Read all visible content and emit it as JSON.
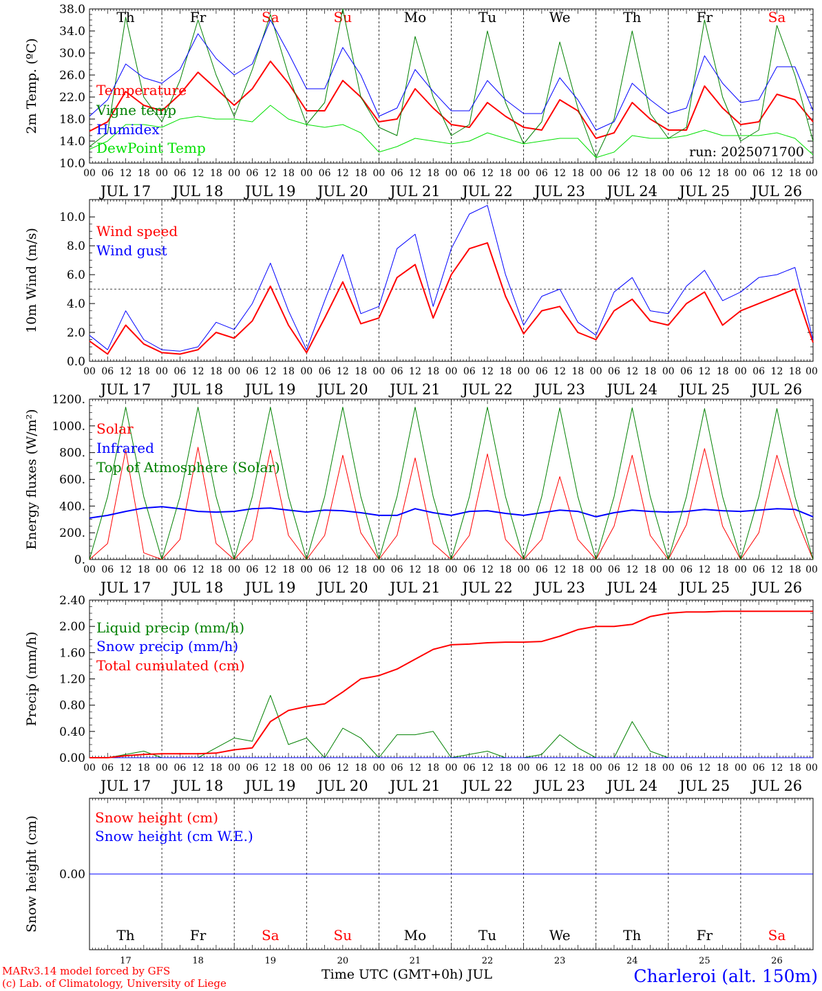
{
  "footer": {
    "model_line": "MARv3.14 model forced by GFS",
    "credit_line": "(c) Lab. of Climatology, University of Liege",
    "xlabel": "Time UTC (GMT+0h) JUL",
    "station": "Charleroi (alt. 150m)"
  },
  "colors": {
    "red": "#ff0000",
    "blue": "#0000ff",
    "darkgreen": "#008000",
    "green": "#00e000",
    "axis": "#000000"
  },
  "hour_labels": [
    "00",
    "06",
    "12",
    "18"
  ],
  "final_hour_label": "00",
  "days": [
    {
      "date": "JUL 17",
      "day": "17",
      "dow": "Th",
      "weekend": false
    },
    {
      "date": "JUL 18",
      "day": "18",
      "dow": "Fr",
      "weekend": false
    },
    {
      "date": "JUL 19",
      "day": "19",
      "dow": "Sa",
      "weekend": true
    },
    {
      "date": "JUL 20",
      "day": "20",
      "dow": "Su",
      "weekend": true
    },
    {
      "date": "JUL 21",
      "day": "21",
      "dow": "Mo",
      "weekend": false
    },
    {
      "date": "JUL 22",
      "day": "22",
      "dow": "Tu",
      "weekend": false
    },
    {
      "date": "JUL 23",
      "day": "23",
      "dow": "We",
      "weekend": false
    },
    {
      "date": "JUL 24",
      "day": "24",
      "dow": "Th",
      "weekend": false
    },
    {
      "date": "JUL 25",
      "day": "25",
      "dow": "Fr",
      "weekend": false
    },
    {
      "date": "JUL 26",
      "day": "26",
      "dow": "Sa",
      "weekend": true
    }
  ],
  "chart_data": [
    {
      "id": "temp",
      "type": "line",
      "ylabel": "2m Temp. (ºC)",
      "ylim": [
        10,
        38
      ],
      "yticks": [
        10,
        14,
        18,
        22,
        26,
        30,
        34,
        38
      ],
      "ytick_labels": [
        "10.0",
        "14.0",
        "18.0",
        "22.0",
        "26.0",
        "30.0",
        "34.0",
        "38.0"
      ],
      "annotation": "run: 2025071700",
      "x_hours": [
        0,
        6,
        12,
        18,
        24,
        30,
        36,
        42,
        48,
        54,
        60,
        66,
        72,
        78,
        84,
        90,
        96,
        102,
        108,
        114,
        120,
        126,
        132,
        138,
        144,
        150,
        156,
        162,
        168,
        174,
        180,
        186,
        192,
        198,
        204,
        210,
        216,
        222,
        228,
        234,
        240
      ],
      "series": [
        {
          "name": "Temperature",
          "color": "#ff0000",
          "width": 2,
          "values": [
            15.8,
            17.5,
            23.0,
            20.5,
            19.5,
            22.5,
            26.5,
            23.5,
            20.5,
            23.5,
            28.5,
            24.5,
            19.5,
            19.5,
            25.0,
            22.0,
            17.5,
            18.0,
            23.5,
            20.0,
            17.0,
            16.5,
            21.0,
            18.5,
            16.5,
            16.0,
            21.5,
            19.5,
            14.5,
            15.5,
            21.0,
            18.0,
            16.0,
            16.0,
            24.0,
            20.0,
            17.0,
            17.5,
            22.5,
            21.5,
            17.5
          ]
        },
        {
          "name": "Vigne temp",
          "color": "#008000",
          "width": 1,
          "values": [
            13.0,
            15.5,
            36.5,
            22.0,
            17.5,
            25.0,
            36.0,
            26.0,
            18.5,
            27.0,
            37.0,
            26.0,
            17.0,
            21.0,
            38.0,
            22.0,
            16.5,
            15.0,
            33.0,
            22.0,
            15.0,
            17.0,
            34.0,
            21.0,
            13.5,
            17.5,
            32.0,
            20.0,
            11.0,
            18.0,
            34.0,
            19.0,
            14.5,
            16.5,
            36.0,
            22.0,
            14.0,
            16.0,
            35.0,
            26.0,
            14.0
          ]
        },
        {
          "name": "Humidex",
          "color": "#0000ff",
          "width": 1,
          "values": [
            18.5,
            21.5,
            28.0,
            25.5,
            24.5,
            27.0,
            33.5,
            29.0,
            26.0,
            28.0,
            36.0,
            30.0,
            23.5,
            23.5,
            31.0,
            26.0,
            18.5,
            20.0,
            27.0,
            23.0,
            19.5,
            19.5,
            25.0,
            21.5,
            19.0,
            19.0,
            25.5,
            21.5,
            16.0,
            17.5,
            24.5,
            21.5,
            19.0,
            20.0,
            29.5,
            24.5,
            21.0,
            21.5,
            27.5,
            27.5,
            19.5
          ]
        },
        {
          "name": "DewPoint Temp",
          "color": "#00e000",
          "width": 1,
          "values": [
            12.5,
            14.0,
            17.0,
            17.0,
            16.5,
            18.0,
            18.5,
            18.0,
            18.0,
            17.5,
            20.5,
            18.0,
            17.0,
            16.5,
            17.0,
            15.5,
            12.0,
            13.0,
            14.5,
            14.0,
            13.5,
            14.0,
            15.5,
            14.5,
            13.5,
            14.0,
            14.5,
            14.5,
            11.0,
            12.0,
            15.0,
            14.5,
            14.5,
            15.0,
            16.0,
            15.0,
            15.0,
            15.0,
            15.5,
            14.5,
            11.5
          ]
        }
      ]
    },
    {
      "id": "wind",
      "type": "line",
      "ylabel": "10m Wind (m/s)",
      "ylim": [
        0,
        11.2
      ],
      "yticks": [
        0,
        2,
        4,
        6,
        8,
        10
      ],
      "ytick_labels": [
        "0.0",
        "2.0",
        "4.0",
        "6.0",
        "8.0",
        "10.0"
      ],
      "reference_line": 5,
      "x_hours": [
        0,
        6,
        12,
        18,
        24,
        30,
        36,
        42,
        48,
        54,
        60,
        66,
        72,
        78,
        84,
        90,
        96,
        102,
        108,
        114,
        120,
        126,
        132,
        138,
        144,
        150,
        156,
        162,
        168,
        174,
        180,
        186,
        192,
        198,
        204,
        210,
        216,
        222,
        228,
        234,
        240
      ],
      "series": [
        {
          "name": "Wind speed",
          "color": "#ff0000",
          "width": 2,
          "values": [
            1.4,
            0.5,
            2.5,
            1.2,
            0.6,
            0.5,
            0.8,
            2.0,
            1.6,
            2.8,
            5.2,
            2.5,
            0.6,
            3.0,
            5.5,
            2.6,
            3.0,
            5.8,
            6.7,
            3.0,
            6.0,
            7.8,
            8.2,
            4.5,
            1.9,
            3.5,
            3.8,
            2.0,
            1.5,
            3.5,
            4.3,
            2.8,
            2.5,
            4.0,
            4.8,
            2.5,
            3.5,
            4.0,
            4.5,
            5.0,
            1.3
          ]
        },
        {
          "name": "Wind gust",
          "color": "#0000ff",
          "width": 1,
          "values": [
            1.8,
            0.8,
            3.5,
            1.5,
            0.8,
            0.7,
            1.0,
            2.7,
            2.2,
            4.0,
            6.8,
            3.5,
            0.8,
            4.2,
            7.4,
            3.3,
            3.8,
            7.8,
            8.8,
            3.8,
            7.8,
            10.2,
            10.8,
            6.0,
            2.5,
            4.5,
            5.0,
            2.7,
            1.8,
            4.8,
            5.8,
            3.5,
            3.3,
            5.2,
            6.3,
            4.2,
            4.8,
            5.8,
            6.0,
            6.5,
            1.5
          ]
        }
      ]
    },
    {
      "id": "energy",
      "type": "line",
      "ylabel": "Energy fluxes (W/m²)",
      "ylim": [
        0,
        1200
      ],
      "yticks": [
        0,
        200,
        400,
        600,
        800,
        1000,
        1200
      ],
      "ytick_labels": [
        "0.",
        "200.",
        "400.",
        "600.",
        "800.",
        "1000.",
        "1200."
      ],
      "x_hours": [
        0,
        6,
        12,
        18,
        24,
        30,
        36,
        42,
        48,
        54,
        60,
        66,
        72,
        78,
        84,
        90,
        96,
        102,
        108,
        114,
        120,
        126,
        132,
        138,
        144,
        150,
        156,
        162,
        168,
        174,
        180,
        186,
        192,
        198,
        204,
        210,
        216,
        222,
        228,
        234,
        240
      ],
      "series": [
        {
          "name": "Solar",
          "color": "#ff0000",
          "width": 1,
          "values": [
            0,
            120,
            820,
            50,
            0,
            150,
            840,
            120,
            0,
            150,
            820,
            180,
            0,
            180,
            780,
            200,
            0,
            180,
            760,
            120,
            0,
            180,
            790,
            150,
            0,
            150,
            620,
            150,
            0,
            250,
            780,
            180,
            0,
            260,
            830,
            250,
            0,
            200,
            780,
            330,
            0
          ]
        },
        {
          "name": "Infrared",
          "color": "#0000ff",
          "width": 2,
          "values": [
            310,
            330,
            360,
            385,
            395,
            380,
            360,
            355,
            360,
            380,
            385,
            370,
            355,
            370,
            365,
            350,
            330,
            330,
            380,
            350,
            330,
            360,
            365,
            345,
            330,
            350,
            370,
            360,
            320,
            350,
            370,
            360,
            355,
            360,
            375,
            365,
            360,
            370,
            380,
            375,
            320
          ]
        },
        {
          "name": "Top of Atmosphere (Solar)",
          "color": "#008000",
          "width": 1,
          "values": [
            0,
            470,
            1140,
            470,
            0,
            470,
            1140,
            470,
            0,
            470,
            1140,
            470,
            0,
            470,
            1140,
            470,
            0,
            470,
            1140,
            470,
            0,
            470,
            1140,
            470,
            0,
            470,
            1135,
            470,
            0,
            470,
            1135,
            470,
            0,
            470,
            1130,
            470,
            0,
            470,
            1130,
            470,
            0
          ]
        }
      ]
    },
    {
      "id": "precip",
      "type": "line",
      "ylabel": "Precip (mm/h)",
      "ylim": [
        0,
        2.4
      ],
      "yticks": [
        0,
        0.4,
        0.8,
        1.2,
        1.6,
        2.0,
        2.4
      ],
      "ytick_labels": [
        "0.00",
        "0.40",
        "0.80",
        "1.20",
        "1.60",
        "2.00",
        "2.40"
      ],
      "x_hours": [
        0,
        6,
        12,
        18,
        24,
        30,
        36,
        42,
        48,
        54,
        60,
        66,
        72,
        78,
        84,
        90,
        96,
        102,
        108,
        114,
        120,
        126,
        132,
        138,
        144,
        150,
        156,
        162,
        168,
        174,
        180,
        186,
        192,
        198,
        204,
        210,
        216,
        222,
        228,
        234,
        240
      ],
      "series": [
        {
          "name": "Liquid precip (mm/h)",
          "color": "#008000",
          "width": 1,
          "values": [
            0,
            0,
            0.05,
            0.1,
            0,
            0,
            0,
            0.15,
            0.3,
            0.25,
            0.95,
            0.2,
            0.3,
            0,
            0.45,
            0.3,
            0,
            0.35,
            0.35,
            0.4,
            0,
            0.05,
            0.1,
            0,
            0,
            0.05,
            0.35,
            0.15,
            0,
            0,
            0.55,
            0.1,
            0,
            0,
            0,
            0,
            0,
            0,
            0,
            0,
            0
          ]
        },
        {
          "name": "Snow precip (mm/h)",
          "color": "#0000ff",
          "width": 1,
          "values": [
            0,
            0,
            0,
            0,
            0,
            0,
            0,
            0,
            0,
            0,
            0,
            0,
            0,
            0,
            0,
            0,
            0,
            0,
            0,
            0,
            0,
            0,
            0,
            0,
            0,
            0,
            0,
            0,
            0,
            0,
            0,
            0,
            0,
            0,
            0,
            0,
            0,
            0,
            0,
            0,
            0
          ]
        },
        {
          "name": "Total cumulated (cm)",
          "color": "#ff0000",
          "width": 2,
          "values": [
            0,
            0,
            0.03,
            0.05,
            0.06,
            0.06,
            0.06,
            0.07,
            0.12,
            0.15,
            0.55,
            0.72,
            0.78,
            0.82,
            1.0,
            1.2,
            1.25,
            1.35,
            1.5,
            1.65,
            1.72,
            1.73,
            1.75,
            1.76,
            1.76,
            1.77,
            1.85,
            1.95,
            2.0,
            2.0,
            2.03,
            2.15,
            2.2,
            2.22,
            2.22,
            2.23,
            2.23,
            2.23,
            2.23,
            2.23,
            2.23
          ]
        }
      ]
    },
    {
      "id": "snow",
      "type": "line",
      "ylabel": "Snow height (cm)",
      "ylim": [
        -1,
        1
      ],
      "yticks": [
        0
      ],
      "ytick_labels": [
        "0.00"
      ],
      "x_hours": [
        0,
        240
      ],
      "series": [
        {
          "name": "Snow height (cm)",
          "color": "#ff0000",
          "width": 1,
          "values": [
            0,
            0
          ]
        },
        {
          "name": "Snow height (cm W.E.)",
          "color": "#0000ff",
          "width": 1,
          "values": [
            0,
            0
          ]
        }
      ]
    }
  ]
}
